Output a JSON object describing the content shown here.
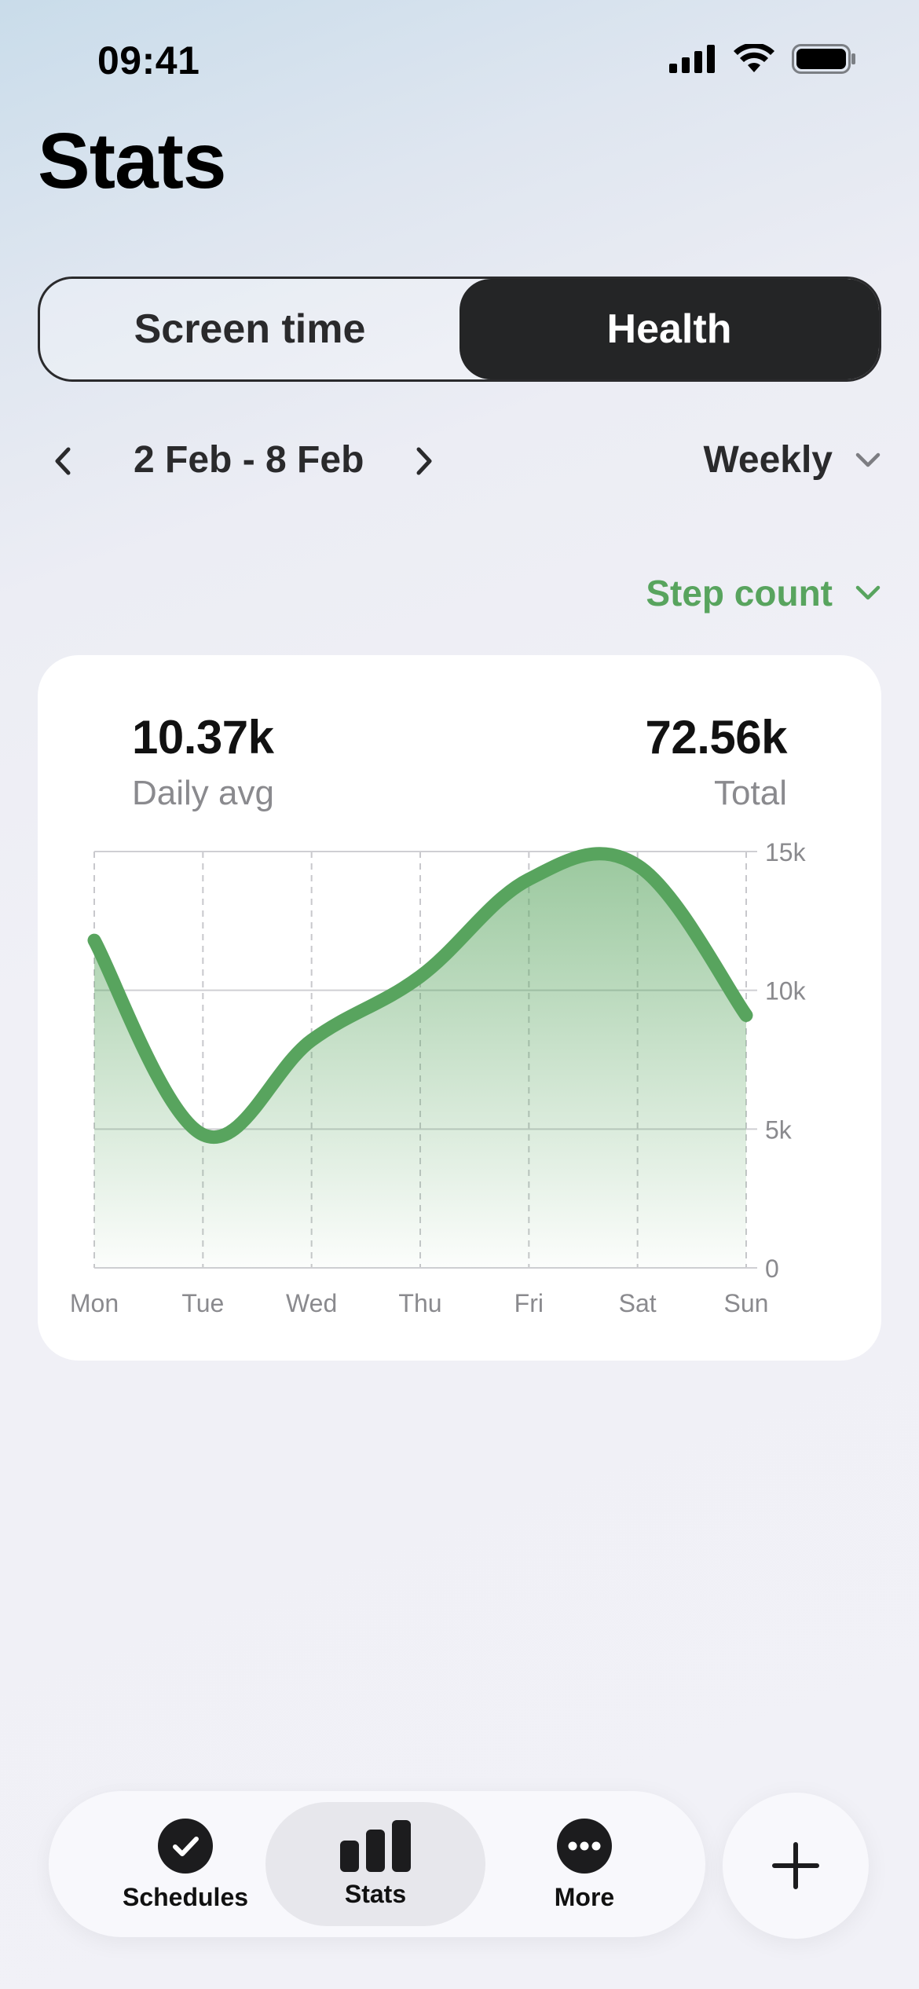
{
  "status_bar": {
    "time": "09:41"
  },
  "header": {
    "title": "Stats"
  },
  "segmented": {
    "options": [
      "Screen time",
      "Health"
    ],
    "selected": "Health"
  },
  "date_nav": {
    "range": "2 Feb - 8 Feb",
    "period": "Weekly"
  },
  "metric": {
    "selected": "Step count"
  },
  "summary": {
    "daily_avg_value": "10.37k",
    "daily_avg_label": "Daily avg",
    "total_value": "72.56k",
    "total_label": "Total"
  },
  "chart_data": {
    "type": "area",
    "x": [
      "Mon",
      "Tue",
      "Wed",
      "Thu",
      "Fri",
      "Sat",
      "Sun"
    ],
    "y_ticks": [
      "0",
      "5k",
      "10k",
      "15k"
    ],
    "ylim": [
      0,
      15000
    ],
    "series": [
      {
        "values": [
          11800,
          4800,
          8200,
          10500,
          14000,
          14500,
          9100
        ]
      }
    ],
    "grid": true,
    "line_color": "#58a45e"
  },
  "tabbar": {
    "items": [
      {
        "label": "Schedules",
        "icon": "checkmark-circle-icon"
      },
      {
        "label": "Stats",
        "icon": "bar-chart-icon"
      },
      {
        "label": "More",
        "icon": "ellipsis-circle-icon"
      }
    ],
    "active": "Stats"
  },
  "colors": {
    "accent": "#58a45e",
    "dark": "#242526"
  }
}
